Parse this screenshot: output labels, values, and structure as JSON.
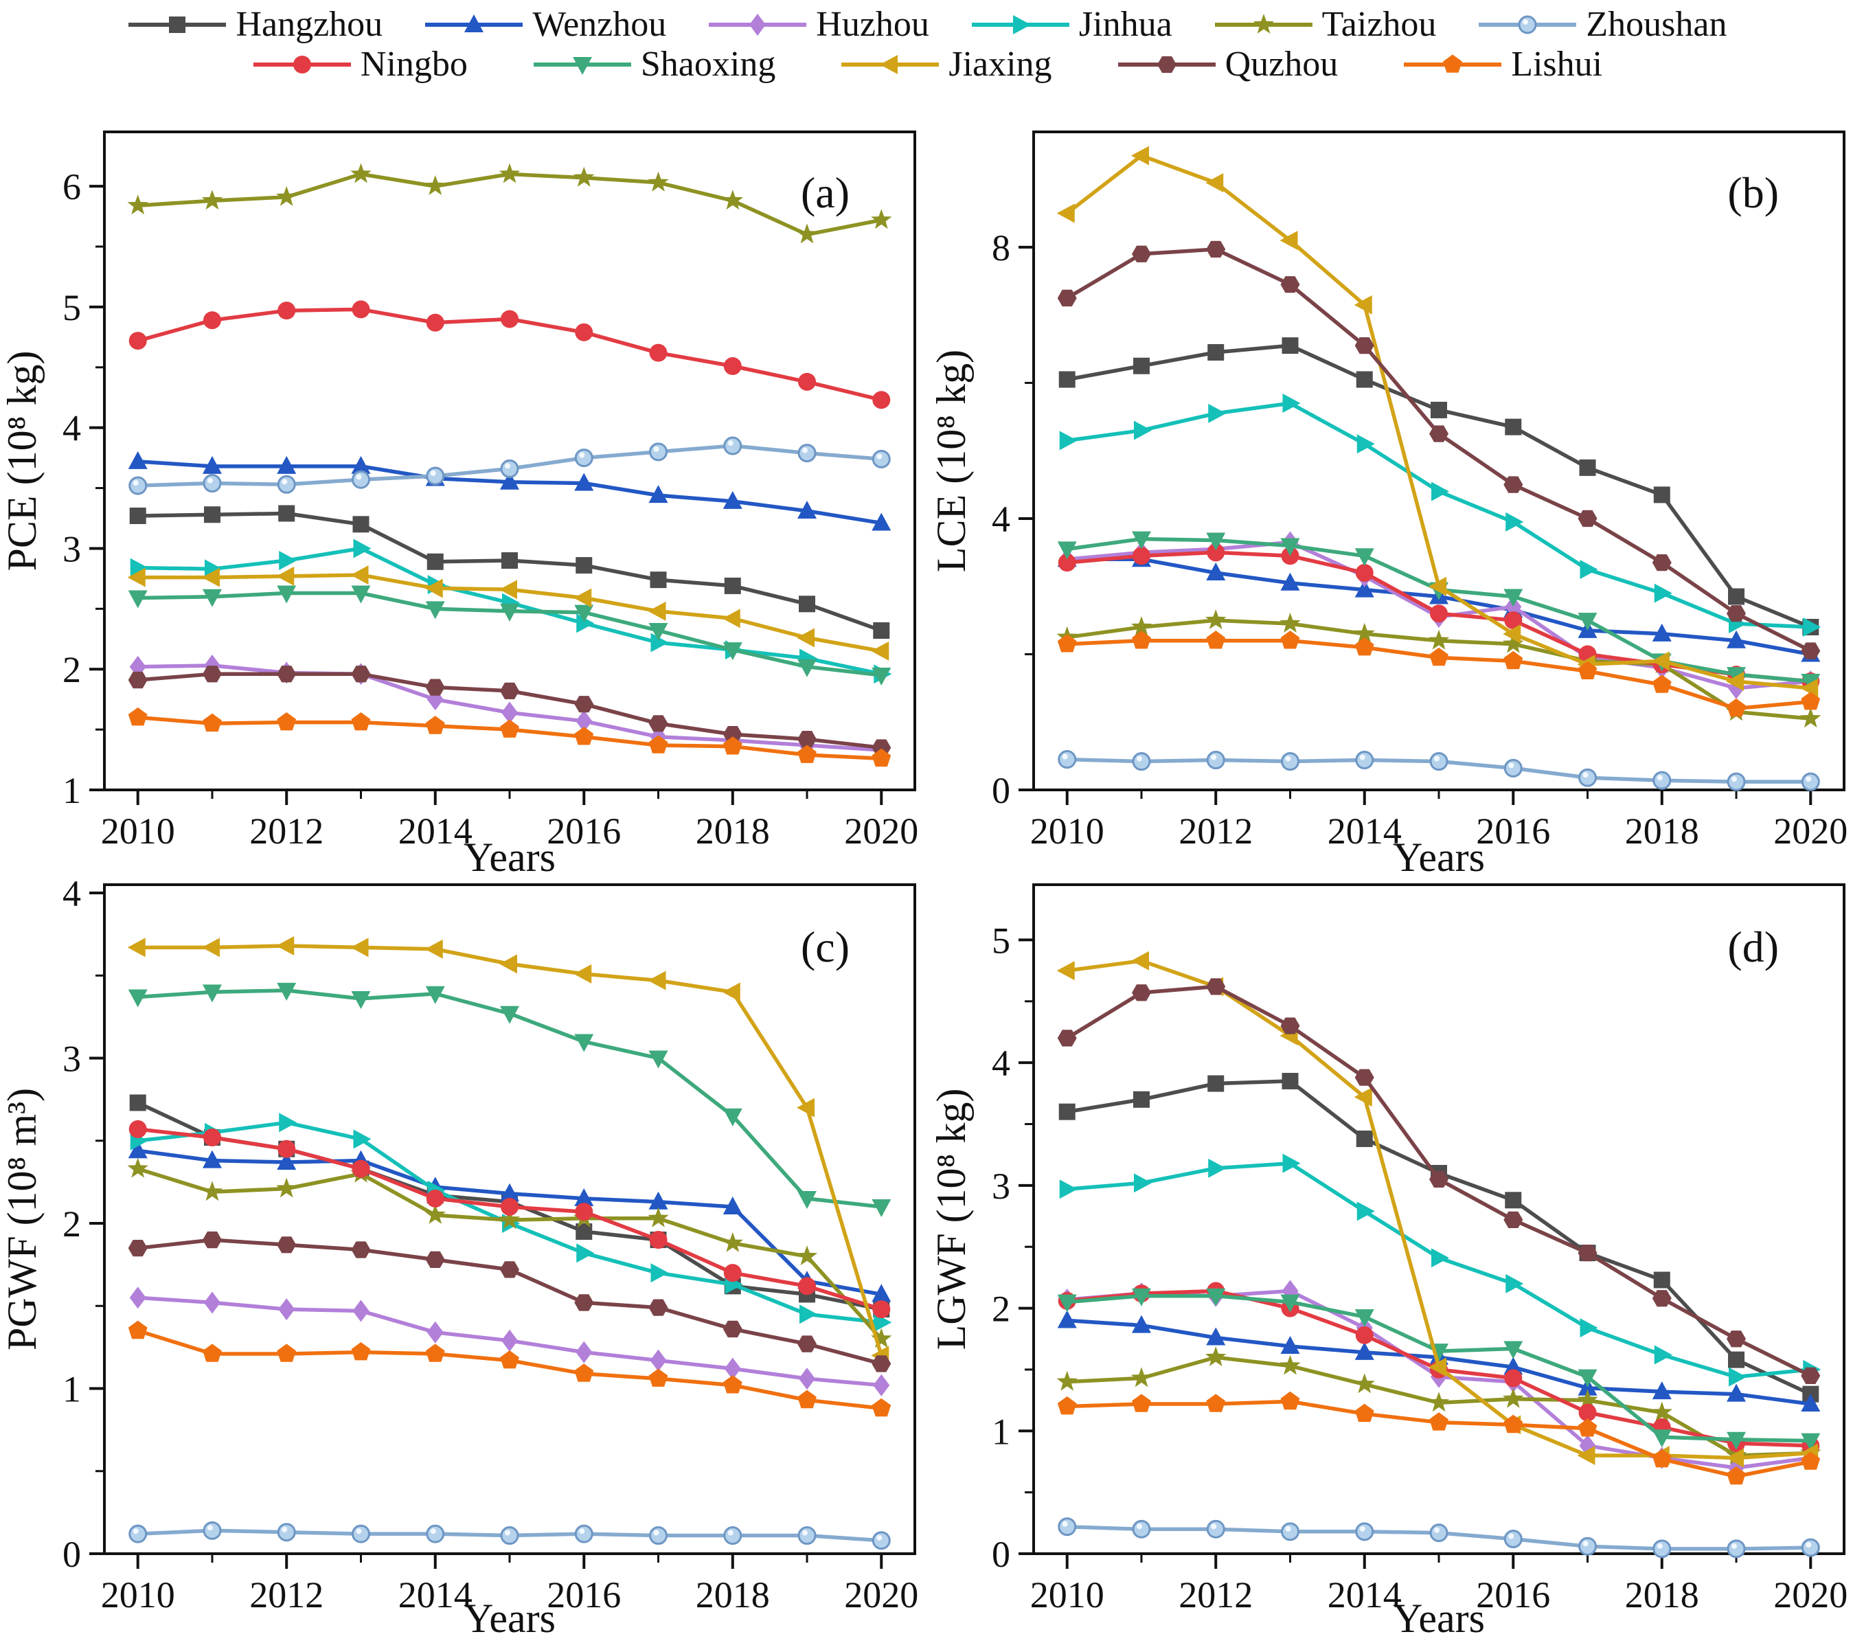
{
  "legend": {
    "items": [
      {
        "label": "Hangzhou"
      },
      {
        "label": "Wenzhou"
      },
      {
        "label": "Huzhou"
      },
      {
        "label": "Jinhua"
      },
      {
        "label": "Taizhou"
      },
      {
        "label": "Zhoushan"
      },
      {
        "label": "Ningbo"
      },
      {
        "label": "Shaoxing"
      },
      {
        "label": "Jiaxing"
      },
      {
        "label": "Quzhou"
      },
      {
        "label": "Lishui"
      }
    ]
  },
  "series_style": [
    {
      "name": "Hangzhou",
      "color": "#4d4d4d",
      "marker": "square"
    },
    {
      "name": "Wenzhou",
      "color": "#2257c4",
      "marker": "triangle-up"
    },
    {
      "name": "Huzhou",
      "color": "#b27fd9",
      "marker": "diamond"
    },
    {
      "name": "Jinhua",
      "color": "#14c0b8",
      "marker": "triangle-right"
    },
    {
      "name": "Taizhou",
      "color": "#8e9222",
      "marker": "star"
    },
    {
      "name": "Zhoushan",
      "color": "#85aacf",
      "marker": "circle-light",
      "fill": "#b5d2ec",
      "edge": "#6d96c4"
    },
    {
      "name": "Ningbo",
      "color": "#e23b43",
      "marker": "circle"
    },
    {
      "name": "Shaoxing",
      "color": "#3da97c",
      "marker": "triangle-down"
    },
    {
      "name": "Jiaxing",
      "color": "#d2a317",
      "marker": "triangle-left"
    },
    {
      "name": "Quzhou",
      "color": "#7a4348",
      "marker": "hexagon"
    },
    {
      "name": "Lishui",
      "color": "#f0700f",
      "marker": "pentagon"
    }
  ],
  "chart_data": [
    {
      "type": "line",
      "panel_label": "(a)",
      "ylabel": "PCE (10⁸ kg)",
      "xlabel": "Years",
      "x": [
        2010,
        2011,
        2012,
        2013,
        2014,
        2015,
        2016,
        2017,
        2018,
        2019,
        2020
      ],
      "xlim": [
        2009.55,
        2020.45
      ],
      "xticks": [
        2010,
        2012,
        2014,
        2016,
        2018,
        2020
      ],
      "x_minor_step": 1,
      "ylim": [
        1,
        6.45
      ],
      "yticks": [
        1,
        2,
        3,
        4,
        5,
        6
      ],
      "y_minor_step": 0.5,
      "grid": false,
      "legend_position": "top-outside",
      "series": [
        {
          "name": "Hangzhou",
          "values": [
            3.27,
            3.28,
            3.29,
            3.2,
            2.89,
            2.9,
            2.86,
            2.74,
            2.69,
            2.54,
            2.32
          ]
        },
        {
          "name": "Wenzhou",
          "values": [
            3.72,
            3.68,
            3.68,
            3.68,
            3.58,
            3.55,
            3.54,
            3.44,
            3.39,
            3.31,
            3.21
          ]
        },
        {
          "name": "Huzhou",
          "values": [
            2.02,
            2.03,
            1.97,
            1.96,
            1.75,
            1.64,
            1.57,
            1.44,
            1.41,
            1.37,
            1.33
          ]
        },
        {
          "name": "Jinhua",
          "values": [
            2.84,
            2.83,
            2.9,
            3.0,
            2.7,
            2.55,
            2.38,
            2.22,
            2.16,
            2.09,
            1.96
          ]
        },
        {
          "name": "Taizhou",
          "values": [
            5.84,
            5.88,
            5.91,
            6.1,
            6.0,
            6.1,
            6.07,
            6.03,
            5.88,
            5.6,
            5.72
          ]
        },
        {
          "name": "Zhoushan",
          "values": [
            3.52,
            3.54,
            3.53,
            3.57,
            3.6,
            3.66,
            3.75,
            3.8,
            3.85,
            3.79,
            3.74
          ]
        },
        {
          "name": "Ningbo",
          "values": [
            4.72,
            4.89,
            4.97,
            4.98,
            4.87,
            4.9,
            4.79,
            4.62,
            4.51,
            4.38,
            4.23
          ]
        },
        {
          "name": "Shaoxing",
          "values": [
            2.59,
            2.6,
            2.63,
            2.63,
            2.5,
            2.48,
            2.47,
            2.32,
            2.16,
            2.02,
            1.95
          ]
        },
        {
          "name": "Jiaxing",
          "values": [
            2.76,
            2.76,
            2.77,
            2.78,
            2.67,
            2.66,
            2.59,
            2.48,
            2.42,
            2.26,
            2.15
          ]
        },
        {
          "name": "Quzhou",
          "values": [
            1.91,
            1.96,
            1.96,
            1.96,
            1.85,
            1.82,
            1.71,
            1.55,
            1.46,
            1.42,
            1.35
          ]
        },
        {
          "name": "Lishui",
          "values": [
            1.6,
            1.55,
            1.56,
            1.56,
            1.53,
            1.5,
            1.44,
            1.37,
            1.36,
            1.29,
            1.26
          ]
        }
      ]
    },
    {
      "type": "line",
      "panel_label": "(b)",
      "ylabel": "LCE (10⁸ kg)",
      "xlabel": "Years",
      "x": [
        2010,
        2011,
        2012,
        2013,
        2014,
        2015,
        2016,
        2017,
        2018,
        2019,
        2020
      ],
      "xlim": [
        2009.55,
        2020.45
      ],
      "xticks": [
        2010,
        2012,
        2014,
        2016,
        2018,
        2020
      ],
      "x_minor_step": 1,
      "ylim": [
        0,
        9.7
      ],
      "yticks": [
        0,
        4,
        8
      ],
      "y_minor_step": 2,
      "grid": false,
      "legend_position": "top-outside",
      "series": [
        {
          "name": "Hangzhou",
          "values": [
            6.05,
            6.25,
            6.45,
            6.55,
            6.05,
            5.6,
            5.35,
            4.75,
            4.35,
            2.85,
            2.4
          ]
        },
        {
          "name": "Wenzhou",
          "values": [
            3.4,
            3.4,
            3.2,
            3.05,
            2.95,
            2.85,
            2.65,
            2.35,
            2.3,
            2.2,
            2.0
          ]
        },
        {
          "name": "Huzhou",
          "values": [
            3.4,
            3.5,
            3.55,
            3.65,
            3.15,
            2.55,
            2.7,
            1.95,
            1.8,
            1.5,
            1.6
          ]
        },
        {
          "name": "Jinhua",
          "values": [
            5.15,
            5.3,
            5.55,
            5.7,
            5.1,
            4.4,
            3.95,
            3.25,
            2.9,
            2.45,
            2.4
          ]
        },
        {
          "name": "Taizhou",
          "values": [
            2.25,
            2.4,
            2.5,
            2.45,
            2.3,
            2.2,
            2.15,
            1.9,
            1.85,
            1.15,
            1.05
          ]
        },
        {
          "name": "Zhoushan",
          "values": [
            0.45,
            0.42,
            0.44,
            0.42,
            0.44,
            0.42,
            0.32,
            0.18,
            0.14,
            0.12,
            0.12
          ]
        },
        {
          "name": "Ningbo",
          "values": [
            3.35,
            3.45,
            3.5,
            3.45,
            3.2,
            2.6,
            2.5,
            2.0,
            1.85,
            1.7,
            1.6
          ]
        },
        {
          "name": "Shaoxing",
          "values": [
            3.55,
            3.7,
            3.68,
            3.6,
            3.45,
            2.95,
            2.85,
            2.5,
            1.9,
            1.7,
            1.6
          ]
        },
        {
          "name": "Jiaxing",
          "values": [
            8.5,
            9.35,
            8.95,
            8.1,
            7.15,
            3.0,
            2.3,
            1.85,
            1.9,
            1.6,
            1.5
          ]
        },
        {
          "name": "Quzhou",
          "values": [
            7.25,
            7.9,
            7.97,
            7.45,
            6.55,
            5.25,
            4.5,
            4.0,
            3.35,
            2.6,
            2.05
          ]
        },
        {
          "name": "Lishui",
          "values": [
            2.15,
            2.2,
            2.2,
            2.2,
            2.1,
            1.95,
            1.9,
            1.75,
            1.55,
            1.2,
            1.3
          ]
        }
      ]
    },
    {
      "type": "line",
      "panel_label": "(c)",
      "ylabel": "PGWF (10⁸ m³)",
      "xlabel": "Years",
      "x": [
        2010,
        2011,
        2012,
        2013,
        2014,
        2015,
        2016,
        2017,
        2018,
        2019,
        2020
      ],
      "xlim": [
        2009.55,
        2020.45
      ],
      "xticks": [
        2010,
        2012,
        2014,
        2016,
        2018,
        2020
      ],
      "x_minor_step": 1,
      "ylim": [
        0,
        4.05
      ],
      "yticks": [
        0,
        1,
        2,
        3,
        4
      ],
      "y_minor_step": 0.5,
      "grid": false,
      "legend_position": "top-outside",
      "series": [
        {
          "name": "Hangzhou",
          "values": [
            2.73,
            2.52,
            2.45,
            2.33,
            2.17,
            2.13,
            1.95,
            1.9,
            1.62,
            1.57,
            1.48
          ]
        },
        {
          "name": "Wenzhou",
          "values": [
            2.44,
            2.38,
            2.37,
            2.38,
            2.22,
            2.18,
            2.15,
            2.13,
            2.1,
            1.65,
            1.57
          ]
        },
        {
          "name": "Huzhou",
          "values": [
            1.55,
            1.52,
            1.48,
            1.47,
            1.34,
            1.29,
            1.22,
            1.17,
            1.12,
            1.06,
            1.02
          ]
        },
        {
          "name": "Jinhua",
          "values": [
            2.5,
            2.55,
            2.61,
            2.51,
            2.2,
            2.0,
            1.82,
            1.7,
            1.63,
            1.45,
            1.4
          ]
        },
        {
          "name": "Taizhou",
          "values": [
            2.33,
            2.19,
            2.21,
            2.3,
            2.05,
            2.02,
            2.03,
            2.03,
            1.88,
            1.8,
            1.3
          ]
        },
        {
          "name": "Zhoushan",
          "values": [
            0.12,
            0.14,
            0.13,
            0.12,
            0.12,
            0.11,
            0.12,
            0.11,
            0.11,
            0.11,
            0.08
          ]
        },
        {
          "name": "Ningbo",
          "values": [
            2.57,
            2.52,
            2.45,
            2.33,
            2.15,
            2.1,
            2.07,
            1.9,
            1.7,
            1.62,
            1.48
          ]
        },
        {
          "name": "Shaoxing",
          "values": [
            3.37,
            3.4,
            3.41,
            3.36,
            3.39,
            3.27,
            3.1,
            3.0,
            2.65,
            2.15,
            2.1
          ]
        },
        {
          "name": "Jiaxing",
          "values": [
            3.67,
            3.67,
            3.68,
            3.67,
            3.66,
            3.57,
            3.51,
            3.47,
            3.4,
            2.7,
            1.2
          ]
        },
        {
          "name": "Quzhou",
          "values": [
            1.85,
            1.9,
            1.87,
            1.84,
            1.78,
            1.72,
            1.52,
            1.49,
            1.36,
            1.27,
            1.15
          ]
        },
        {
          "name": "Lishui",
          "values": [
            1.35,
            1.21,
            1.21,
            1.22,
            1.21,
            1.17,
            1.09,
            1.06,
            1.02,
            0.93,
            0.88
          ]
        }
      ]
    },
    {
      "type": "line",
      "panel_label": "(d)",
      "ylabel": "LGWF (10⁸ kg)",
      "xlabel": "Years",
      "x": [
        2010,
        2011,
        2012,
        2013,
        2014,
        2015,
        2016,
        2017,
        2018,
        2019,
        2020
      ],
      "xlim": [
        2009.55,
        2020.45
      ],
      "xticks": [
        2010,
        2012,
        2014,
        2016,
        2018,
        2020
      ],
      "x_minor_step": 1,
      "ylim": [
        0,
        5.45
      ],
      "yticks": [
        0,
        1,
        2,
        3,
        4,
        5
      ],
      "y_minor_step": 0.5,
      "grid": false,
      "legend_position": "top-outside",
      "series": [
        {
          "name": "Hangzhou",
          "values": [
            3.6,
            3.7,
            3.83,
            3.85,
            3.38,
            3.1,
            2.88,
            2.45,
            2.23,
            1.58,
            1.3
          ]
        },
        {
          "name": "Wenzhou",
          "values": [
            1.9,
            1.86,
            1.76,
            1.69,
            1.64,
            1.6,
            1.52,
            1.35,
            1.32,
            1.3,
            1.22
          ]
        },
        {
          "name": "Huzhou",
          "values": [
            2.07,
            2.12,
            2.1,
            2.14,
            1.84,
            1.44,
            1.4,
            0.88,
            0.78,
            0.7,
            0.78
          ]
        },
        {
          "name": "Jinhua",
          "values": [
            2.97,
            3.02,
            3.14,
            3.18,
            2.79,
            2.41,
            2.2,
            1.84,
            1.62,
            1.44,
            1.5
          ]
        },
        {
          "name": "Taizhou",
          "values": [
            1.4,
            1.43,
            1.6,
            1.53,
            1.38,
            1.23,
            1.26,
            1.25,
            1.15,
            0.8,
            0.82
          ]
        },
        {
          "name": "Zhoushan",
          "values": [
            0.22,
            0.2,
            0.2,
            0.18,
            0.18,
            0.17,
            0.12,
            0.06,
            0.04,
            0.04,
            0.05
          ]
        },
        {
          "name": "Ningbo",
          "values": [
            2.06,
            2.12,
            2.14,
            2.0,
            1.78,
            1.5,
            1.43,
            1.15,
            1.03,
            0.9,
            0.88
          ]
        },
        {
          "name": "Shaoxing",
          "values": [
            2.05,
            2.1,
            2.1,
            2.05,
            1.93,
            1.65,
            1.67,
            1.44,
            0.95,
            0.93,
            0.92
          ]
        },
        {
          "name": "Jiaxing",
          "values": [
            4.75,
            4.83,
            4.62,
            4.22,
            3.72,
            1.52,
            1.05,
            0.8,
            0.8,
            0.78,
            0.82
          ]
        },
        {
          "name": "Quzhou",
          "values": [
            4.2,
            4.57,
            4.62,
            4.3,
            3.88,
            3.05,
            2.72,
            2.45,
            2.08,
            1.75,
            1.45
          ]
        },
        {
          "name": "Lishui",
          "values": [
            1.2,
            1.22,
            1.22,
            1.24,
            1.14,
            1.07,
            1.05,
            1.02,
            0.77,
            0.63,
            0.75
          ]
        }
      ]
    }
  ]
}
